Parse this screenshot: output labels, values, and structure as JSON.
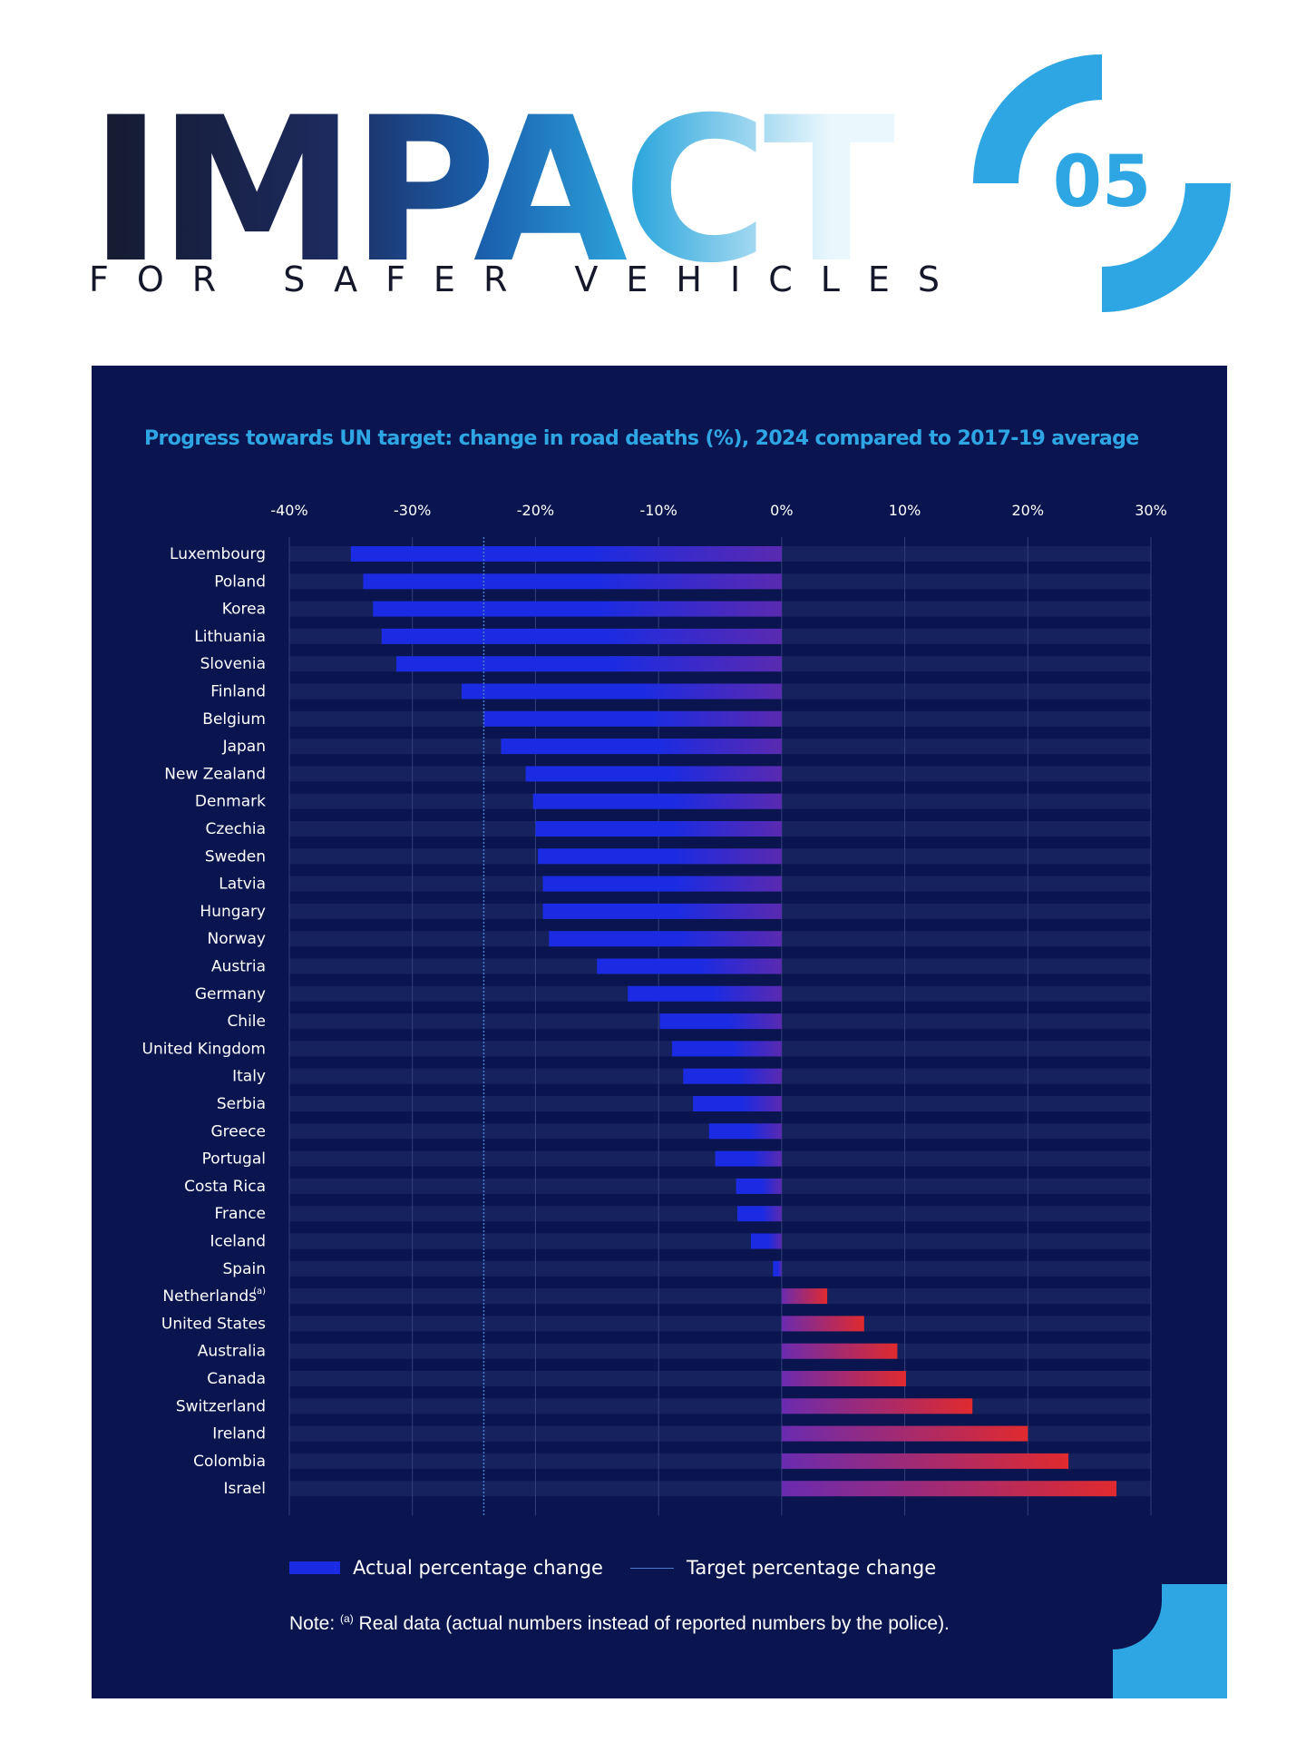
{
  "header": {
    "headline": "IMPACT",
    "subheadline": "FOR SAFER VEHICLES",
    "chapter_number": "05"
  },
  "colors": {
    "panel_background": "#0a1550",
    "accent_blue": "#2ea6e3",
    "bar_negative_start": "#1a2be3",
    "bar_negative_end": "#5a2ab0",
    "bar_positive_start": "#6a2bb0",
    "bar_positive_end": "#e02a2e",
    "target_line": "#4a7cc7"
  },
  "chart_data": {
    "type": "bar",
    "orientation": "horizontal",
    "title": "Progress towards UN target: change in road deaths (%), 2024 compared to 2017-19 average",
    "xlim": [
      -40,
      30
    ],
    "x_ticks": [
      -40,
      -30,
      -20,
      -10,
      0,
      10,
      20,
      30
    ],
    "x_tick_labels": [
      "-40%",
      "-30%",
      "-20%",
      "-10%",
      "0%",
      "10%",
      "20%",
      "30%"
    ],
    "grid": true,
    "target_value": -24.2,
    "categories": [
      "Luxembourg",
      "Poland",
      "Korea",
      "Lithuania",
      "Slovenia",
      "Finland",
      "Belgium",
      "Japan",
      "New Zealand",
      "Denmark",
      "Czechia",
      "Sweden",
      "Latvia",
      "Hungary",
      "Norway",
      "Austria",
      "Germany",
      "Chile",
      "United Kingdom",
      "Italy",
      "Serbia",
      "Greece",
      "Portugal",
      "Costa Rica",
      "France",
      "Iceland",
      "Spain",
      "Netherlands",
      "United States",
      "Australia",
      "Canada",
      "Switzerland",
      "Ireland",
      "Colombia",
      "Israel"
    ],
    "category_superscripts": {
      "Netherlands": "(a)"
    },
    "series": [
      {
        "name": "Actual percentage change",
        "values": [
          -35,
          -34,
          -33.2,
          -32.5,
          -31.3,
          -26,
          -24.2,
          -22.8,
          -20.8,
          -20.2,
          -20,
          -19.8,
          -19.4,
          -19.4,
          -18.9,
          -15,
          -12.5,
          -9.9,
          -8.9,
          -8,
          -7.2,
          -5.9,
          -5.4,
          -3.7,
          -3.6,
          -2.5,
          -0.7,
          3.7,
          6.7,
          9.4,
          10.1,
          15.5,
          20,
          23.3,
          27.2
        ]
      }
    ],
    "legend": {
      "placement": "bottom-left",
      "entries": [
        "Actual percentage change",
        "Target percentage change"
      ]
    }
  },
  "footnote": {
    "prefix": "Note: ",
    "marker": "(a)",
    "text": " Real data (actual numbers instead of reported numbers by the police)."
  }
}
